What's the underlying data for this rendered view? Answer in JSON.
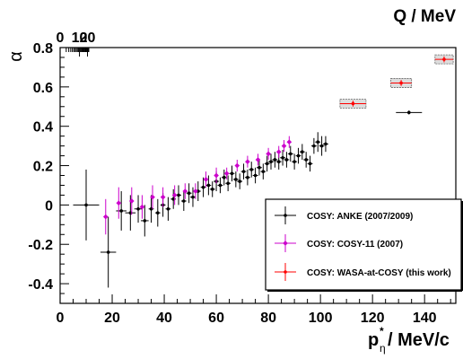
{
  "chart_data": {
    "type": "scatter",
    "title": "",
    "xlabel": "p",
    "xlabel_super": "*",
    "xlabel_sub": "η",
    "xlabel_suffix": " / MeV/c",
    "ylabel": "α",
    "x2label": "Q / MeV",
    "xlim": [
      0,
      152
    ],
    "ylim": [
      -0.5,
      0.8
    ],
    "x_ticks": [
      0,
      20,
      40,
      60,
      80,
      100,
      120,
      140
    ],
    "y_ticks": [
      -0.4,
      -0.2,
      0,
      0.2,
      0.4,
      0.6,
      0.8
    ],
    "x2_ticks": [
      0,
      10,
      20
    ],
    "x2_relation": "Q = p^2 / (2 * 2.76) approx.",
    "legend_position": "bottom-right",
    "grid": false,
    "series": [
      {
        "name": "COSY: ANKE (2007/2009)",
        "color": "#000000",
        "points": [
          {
            "x": 10,
            "y": 0.0,
            "yerr": 0.18,
            "xerr": 5
          },
          {
            "x": 18.5,
            "y": -0.24,
            "yerr": 0.18,
            "xerr": 3
          },
          {
            "x": 23.5,
            "y": -0.03,
            "yerr": 0.1,
            "xerr": 2
          },
          {
            "x": 27,
            "y": -0.04,
            "yerr": 0.09,
            "xerr": 2
          },
          {
            "x": 30,
            "y": -0.02,
            "yerr": 0.07,
            "xerr": 1.5
          },
          {
            "x": 32.5,
            "y": -0.08,
            "yerr": 0.08,
            "xerr": 1.5
          },
          {
            "x": 35,
            "y": -0.02,
            "yerr": 0.07,
            "xerr": 1
          },
          {
            "x": 37.5,
            "y": -0.04,
            "yerr": 0.07,
            "xerr": 1
          },
          {
            "x": 39.5,
            "y": 0.0,
            "yerr": 0.06,
            "xerr": 1
          },
          {
            "x": 41.5,
            "y": -0.02,
            "yerr": 0.06,
            "xerr": 1
          },
          {
            "x": 43.5,
            "y": 0.03,
            "yerr": 0.05,
            "xerr": 1
          },
          {
            "x": 45.5,
            "y": 0.05,
            "yerr": 0.05,
            "xerr": 1
          },
          {
            "x": 47.5,
            "y": 0.02,
            "yerr": 0.05,
            "xerr": 1
          },
          {
            "x": 49.5,
            "y": 0.06,
            "yerr": 0.05,
            "xerr": 1
          },
          {
            "x": 51,
            "y": 0.04,
            "yerr": 0.05,
            "xerr": 1
          },
          {
            "x": 53,
            "y": 0.07,
            "yerr": 0.05,
            "xerr": 1
          },
          {
            "x": 55,
            "y": 0.09,
            "yerr": 0.05,
            "xerr": 1
          },
          {
            "x": 57,
            "y": 0.1,
            "yerr": 0.05,
            "xerr": 1
          },
          {
            "x": 58.5,
            "y": 0.08,
            "yerr": 0.04,
            "xerr": 1
          },
          {
            "x": 60,
            "y": 0.12,
            "yerr": 0.05,
            "xerr": 1
          },
          {
            "x": 61.5,
            "y": 0.1,
            "yerr": 0.04,
            "xerr": 1
          },
          {
            "x": 63,
            "y": 0.14,
            "yerr": 0.04,
            "xerr": 1
          },
          {
            "x": 64.5,
            "y": 0.11,
            "yerr": 0.04,
            "xerr": 1
          },
          {
            "x": 66,
            "y": 0.16,
            "yerr": 0.04,
            "xerr": 1
          },
          {
            "x": 67.5,
            "y": 0.13,
            "yerr": 0.04,
            "xerr": 1
          },
          {
            "x": 69,
            "y": 0.12,
            "yerr": 0.04,
            "xerr": 1
          },
          {
            "x": 70.5,
            "y": 0.17,
            "yerr": 0.04,
            "xerr": 1
          },
          {
            "x": 72,
            "y": 0.14,
            "yerr": 0.04,
            "xerr": 1
          },
          {
            "x": 73.5,
            "y": 0.18,
            "yerr": 0.04,
            "xerr": 1
          },
          {
            "x": 75,
            "y": 0.15,
            "yerr": 0.04,
            "xerr": 1
          },
          {
            "x": 76.5,
            "y": 0.19,
            "yerr": 0.04,
            "xerr": 1
          },
          {
            "x": 78,
            "y": 0.17,
            "yerr": 0.04,
            "xerr": 1
          },
          {
            "x": 79.5,
            "y": 0.21,
            "yerr": 0.04,
            "xerr": 1
          },
          {
            "x": 81,
            "y": 0.22,
            "yerr": 0.04,
            "xerr": 1
          },
          {
            "x": 82.5,
            "y": 0.23,
            "yerr": 0.04,
            "xerr": 1
          },
          {
            "x": 84,
            "y": 0.22,
            "yerr": 0.04,
            "xerr": 1
          },
          {
            "x": 85.5,
            "y": 0.24,
            "yerr": 0.04,
            "xerr": 1
          },
          {
            "x": 87,
            "y": 0.23,
            "yerr": 0.04,
            "xerr": 1
          },
          {
            "x": 88.5,
            "y": 0.26,
            "yerr": 0.04,
            "xerr": 1
          },
          {
            "x": 90,
            "y": 0.22,
            "yerr": 0.04,
            "xerr": 1
          },
          {
            "x": 91.5,
            "y": 0.25,
            "yerr": 0.04,
            "xerr": 1
          },
          {
            "x": 93,
            "y": 0.27,
            "yerr": 0.04,
            "xerr": 1
          },
          {
            "x": 94.5,
            "y": 0.23,
            "yerr": 0.04,
            "xerr": 1
          },
          {
            "x": 96,
            "y": 0.21,
            "yerr": 0.04,
            "xerr": 1
          },
          {
            "x": 97.5,
            "y": 0.3,
            "yerr": 0.04,
            "xerr": 1
          },
          {
            "x": 99,
            "y": 0.32,
            "yerr": 0.05,
            "xerr": 1
          },
          {
            "x": 100.5,
            "y": 0.3,
            "yerr": 0.05,
            "xerr": 1
          },
          {
            "x": 102,
            "y": 0.31,
            "yerr": 0.04,
            "xerr": 1
          },
          {
            "x": 134,
            "y": 0.47,
            "yerr": 0.01,
            "xerr": 5
          }
        ]
      },
      {
        "name": "COSY: COSY-11 (2007)",
        "color": "#cc00cc",
        "points": [
          {
            "x": 17.5,
            "y": -0.06,
            "yerr": 0.09
          },
          {
            "x": 22.5,
            "y": 0.01,
            "yerr": 0.08
          },
          {
            "x": 27.5,
            "y": 0.02,
            "yerr": 0.07
          },
          {
            "x": 31.5,
            "y": -0.01,
            "yerr": 0.06
          },
          {
            "x": 35.5,
            "y": 0.04,
            "yerr": 0.06
          },
          {
            "x": 39.5,
            "y": 0.04,
            "yerr": 0.05
          },
          {
            "x": 44,
            "y": 0.05,
            "yerr": 0.05
          },
          {
            "x": 48,
            "y": 0.07,
            "yerr": 0.04
          },
          {
            "x": 52,
            "y": 0.07,
            "yerr": 0.04
          },
          {
            "x": 56,
            "y": 0.13,
            "yerr": 0.04
          },
          {
            "x": 60,
            "y": 0.15,
            "yerr": 0.04
          },
          {
            "x": 64,
            "y": 0.16,
            "yerr": 0.03
          },
          {
            "x": 68,
            "y": 0.2,
            "yerr": 0.03
          },
          {
            "x": 72,
            "y": 0.22,
            "yerr": 0.03
          },
          {
            "x": 76,
            "y": 0.23,
            "yerr": 0.03
          },
          {
            "x": 80,
            "y": 0.26,
            "yerr": 0.03
          },
          {
            "x": 84,
            "y": 0.27,
            "yerr": 0.03
          },
          {
            "x": 86,
            "y": 0.3,
            "yerr": 0.03
          },
          {
            "x": 88,
            "y": 0.32,
            "yerr": 0.03
          }
        ]
      },
      {
        "name": "COSY: WASA-at-COSY (this work)",
        "color": "#ff0000",
        "points": [
          {
            "x": 112.5,
            "y": 0.515,
            "yerr": 0.015,
            "xerr": 5,
            "syst_box": true
          },
          {
            "x": 131,
            "y": 0.62,
            "yerr": 0.015,
            "xerr": 4,
            "syst_box": true
          },
          {
            "x": 147.5,
            "y": 0.74,
            "yerr": 0.015,
            "xerr": 3.5,
            "syst_box": true
          }
        ]
      }
    ]
  }
}
